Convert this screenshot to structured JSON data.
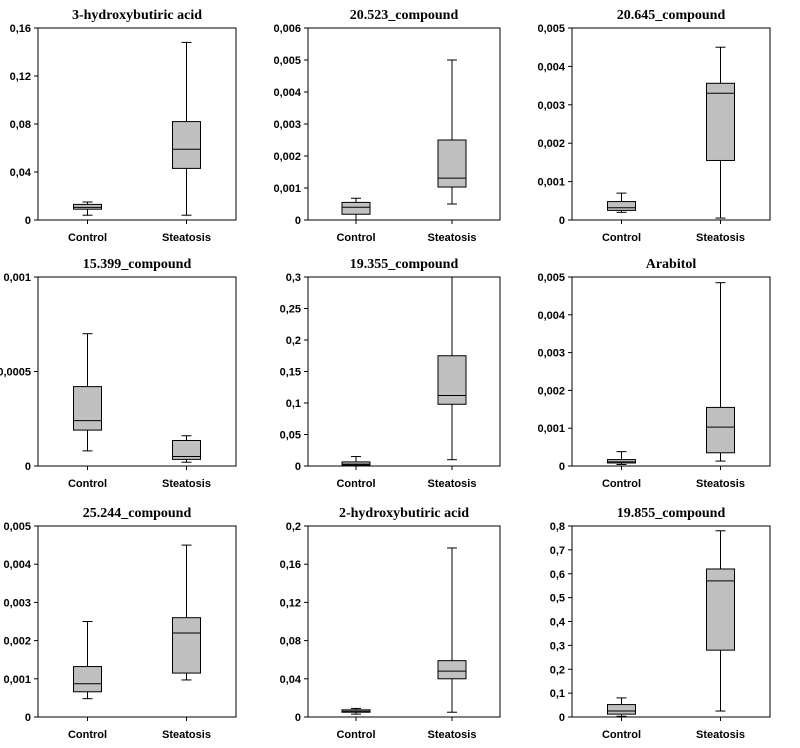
{
  "chart_data": [
    {
      "type": "box",
      "title": "3-hydroxybutiric acid",
      "categories": [
        "Control",
        "Steatosis"
      ],
      "ylim": [
        0,
        0.16
      ],
      "yticks": [
        "0",
        "0,04",
        "0,08",
        "0,12",
        "0,16"
      ],
      "ytick_values": [
        0,
        0.04,
        0.08,
        0.12,
        0.16
      ],
      "boxes": [
        {
          "min": 0.004,
          "q1": 0.009,
          "median": 0.0105,
          "q3": 0.013,
          "max": 0.015
        },
        {
          "min": 0.004,
          "q1": 0.043,
          "median": 0.059,
          "q3": 0.082,
          "max": 0.148
        }
      ]
    },
    {
      "type": "box",
      "title": "20.523_compound",
      "categories": [
        "Control",
        "Steatosis"
      ],
      "ylim": [
        0,
        0.006
      ],
      "yticks": [
        "0",
        "0,001",
        "0,002",
        "0,003",
        "0,004",
        "0,005",
        "0,006"
      ],
      "ytick_values": [
        0,
        0.001,
        0.002,
        0.003,
        0.004,
        0.005,
        0.006
      ],
      "boxes": [
        {
          "min": 0.0,
          "q1": 0.00018,
          "median": 0.0004,
          "q3": 0.00055,
          "max": 0.00068
        },
        {
          "min": 0.0005,
          "q1": 0.00103,
          "median": 0.00131,
          "q3": 0.0025,
          "max": 0.005
        }
      ]
    },
    {
      "type": "box",
      "title": "20.645_compound",
      "categories": [
        "Control",
        "Steatosis"
      ],
      "ylim": [
        0,
        0.005
      ],
      "yticks": [
        "0",
        "0,001",
        "0,002",
        "0,003",
        "0,004",
        "0,005"
      ],
      "ytick_values": [
        0,
        0.001,
        0.002,
        0.003,
        0.004,
        0.005
      ],
      "boxes": [
        {
          "min": 0.0002,
          "q1": 0.00025,
          "median": 0.00032,
          "q3": 0.00048,
          "max": 0.0007
        },
        {
          "min": 5e-05,
          "q1": 0.00155,
          "median": 0.0033,
          "q3": 0.00356,
          "max": 0.0045
        }
      ]
    },
    {
      "type": "box",
      "title": "15.399_compound",
      "categories": [
        "Control",
        "Steatosis"
      ],
      "ylim": [
        0,
        0.001
      ],
      "yticks": [
        "0",
        "0,0005",
        "0,001"
      ],
      "ytick_values": [
        0,
        0.0005,
        0.001
      ],
      "boxes": [
        {
          "min": 8e-05,
          "q1": 0.00019,
          "median": 0.00024,
          "q3": 0.00042,
          "max": 0.0007
        },
        {
          "min": 2e-05,
          "q1": 3.5e-05,
          "median": 5e-05,
          "q3": 0.000135,
          "max": 0.00016
        }
      ]
    },
    {
      "type": "box",
      "title": "19.355_compound",
      "categories": [
        "Control",
        "Steatosis"
      ],
      "ylim": [
        0,
        0.3
      ],
      "yticks": [
        "0",
        "0,05",
        "0,1",
        "0,15",
        "0,2",
        "0,25",
        "0,3"
      ],
      "ytick_values": [
        0,
        0.05,
        0.1,
        0.15,
        0.2,
        0.25,
        0.3
      ],
      "boxes": [
        {
          "min": 0.0,
          "q1": 0.0015,
          "median": 0.003,
          "q3": 0.0065,
          "max": 0.015
        },
        {
          "min": 0.01,
          "q1": 0.098,
          "median": 0.112,
          "q3": 0.175,
          "max": 0.3
        }
      ]
    },
    {
      "type": "box",
      "title": "Arabitol",
      "categories": [
        "Control",
        "Steatosis"
      ],
      "ylim": [
        0,
        0.005
      ],
      "yticks": [
        "0",
        "0,001",
        "0,002",
        "0,003",
        "0,004",
        "0,005"
      ],
      "ytick_values": [
        0,
        0.001,
        0.002,
        0.003,
        0.004,
        0.005
      ],
      "boxes": [
        {
          "min": 4e-05,
          "q1": 8e-05,
          "median": 0.00011,
          "q3": 0.00017,
          "max": 0.00038
        },
        {
          "min": 0.00013,
          "q1": 0.00035,
          "median": 0.00103,
          "q3": 0.00155,
          "max": 0.00485
        }
      ]
    },
    {
      "type": "box",
      "title": "25.244_compound",
      "categories": [
        "Control",
        "Steatosis"
      ],
      "ylim": [
        0,
        0.005
      ],
      "yticks": [
        "0",
        "0,001",
        "0,002",
        "0,003",
        "0,004",
        "0,005"
      ],
      "ytick_values": [
        0,
        0.001,
        0.002,
        0.003,
        0.004,
        0.005
      ],
      "boxes": [
        {
          "min": 0.00048,
          "q1": 0.00066,
          "median": 0.00087,
          "q3": 0.00132,
          "max": 0.0025
        },
        {
          "min": 0.00097,
          "q1": 0.00115,
          "median": 0.0022,
          "q3": 0.0026,
          "max": 0.0045
        }
      ]
    },
    {
      "type": "box",
      "title": "2-hydroxybutiric acid",
      "categories": [
        "Control",
        "Steatosis"
      ],
      "ylim": [
        0,
        0.2
      ],
      "yticks": [
        "0",
        "0,04",
        "0,08",
        "0,12",
        "0,16",
        "0,2"
      ],
      "ytick_values": [
        0,
        0.04,
        0.08,
        0.12,
        0.16,
        0.2
      ],
      "boxes": [
        {
          "min": 0.003,
          "q1": 0.005,
          "median": 0.006,
          "q3": 0.0075,
          "max": 0.009
        },
        {
          "min": 0.005,
          "q1": 0.04,
          "median": 0.048,
          "q3": 0.059,
          "max": 0.177
        }
      ]
    },
    {
      "type": "box",
      "title": "19.855_compound",
      "categories": [
        "Control",
        "Steatosis"
      ],
      "ylim": [
        0,
        0.8
      ],
      "yticks": [
        "0",
        "0,1",
        "0,2",
        "0,3",
        "0,4",
        "0,5",
        "0,6",
        "0,7",
        "0,8"
      ],
      "ytick_values": [
        0,
        0.1,
        0.2,
        0.3,
        0.4,
        0.5,
        0.6,
        0.7,
        0.8
      ],
      "boxes": [
        {
          "min": 0.003,
          "q1": 0.012,
          "median": 0.025,
          "q3": 0.052,
          "max": 0.08
        },
        {
          "min": 0.025,
          "q1": 0.28,
          "median": 0.57,
          "q3": 0.62,
          "max": 0.78
        }
      ]
    }
  ],
  "colors": {
    "box_fill": "#c0c0c0",
    "stroke": "#000000",
    "background": "#ffffff"
  }
}
